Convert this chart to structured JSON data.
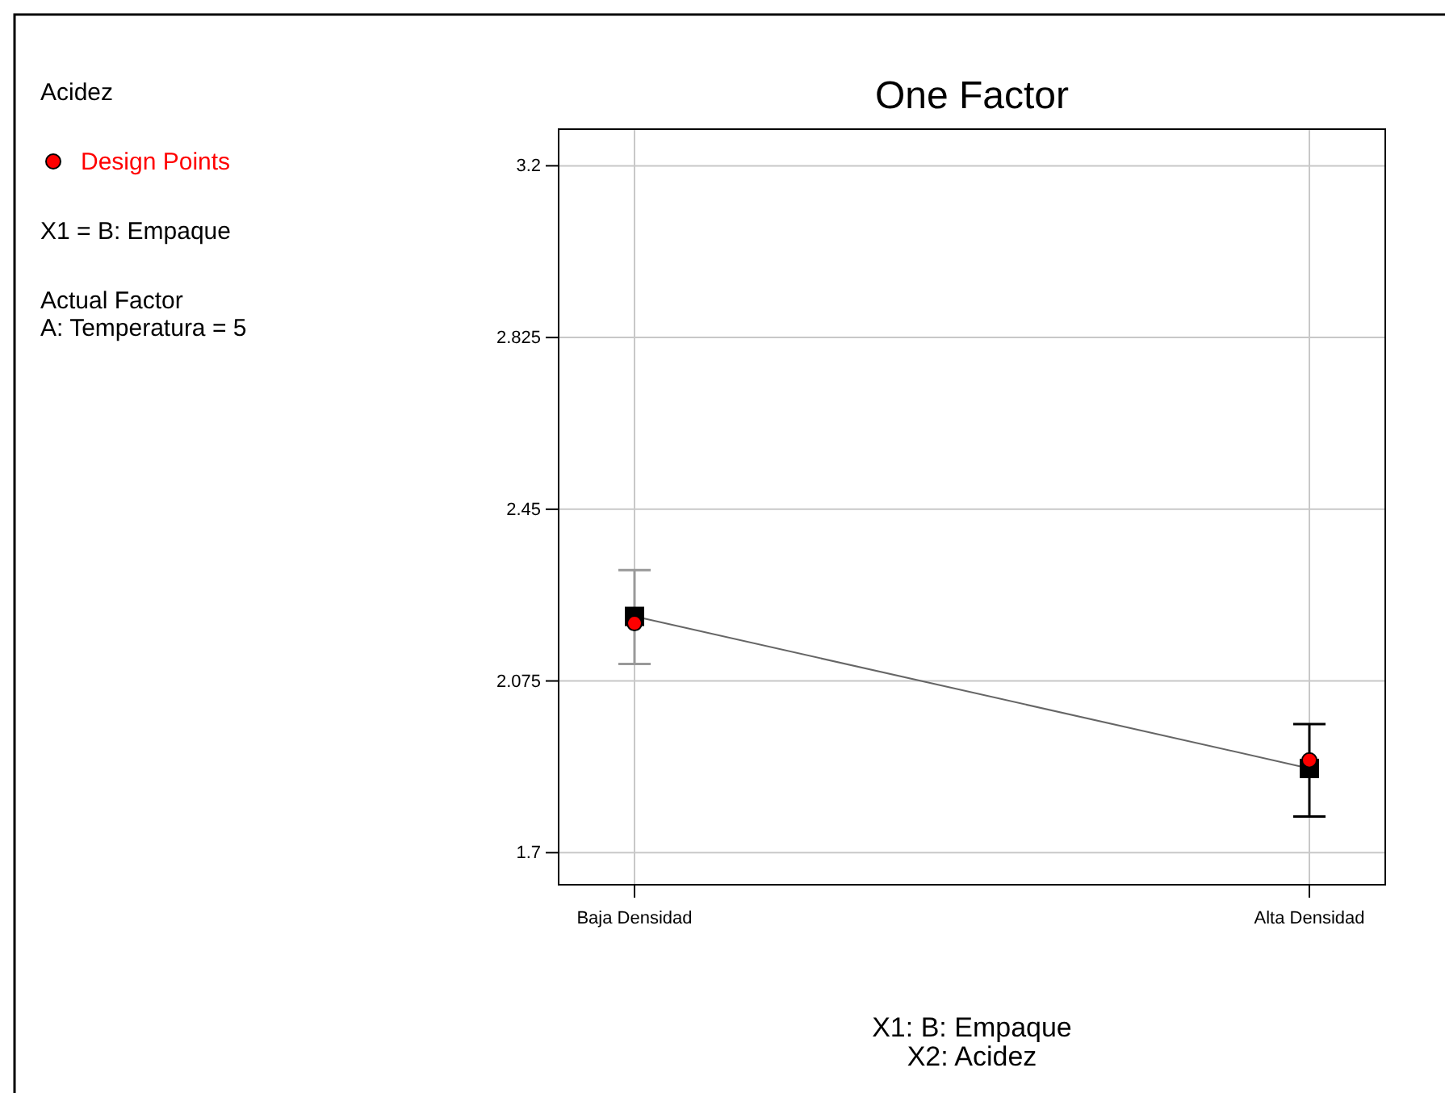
{
  "chart_data": {
    "type": "line",
    "title": "One Factor",
    "xlabel": "X1: B: Empaque\nX2: Acidez",
    "categories": [
      "Baja Densidad",
      "Alta Densidad"
    ],
    "series": [
      {
        "color": "#000000",
        "values": [
          2.216,
          1.884
        ],
        "errors": [
          [
            2.112,
            2.317
          ],
          [
            1.779,
            1.981
          ]
        ],
        "marker": "square"
      },
      {
        "type": "scatter",
        "name": "Design Points",
        "color": "#ff0000",
        "values": [
          2.201,
          1.902
        ],
        "marker": "circle"
      }
    ],
    "ylim": [
      1.63,
      3.28
    ],
    "yticks": [
      1.7,
      2.075,
      2.45,
      2.825,
      3.2
    ],
    "grid": true,
    "legend": "left",
    "annotations": [
      "Acidez",
      "X1 = B: Empaque",
      "Actual Factor\nA: Temperatura = 5"
    ]
  }
}
